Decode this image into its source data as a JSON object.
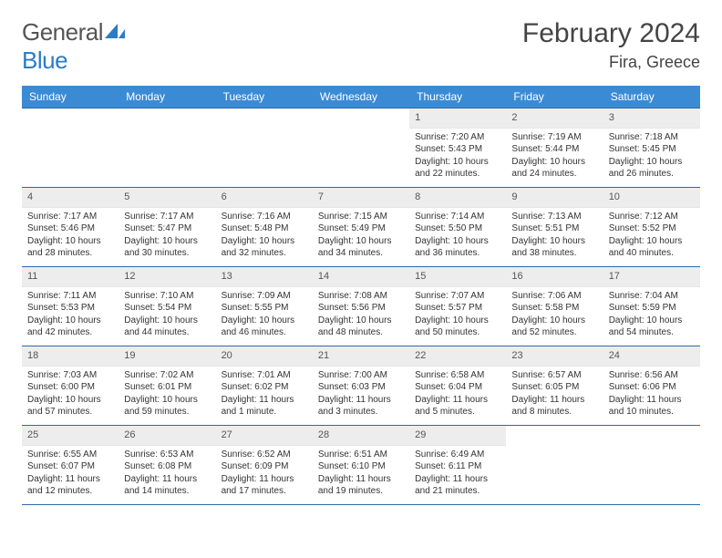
{
  "brand": {
    "part1": "General",
    "part2": "Blue"
  },
  "title": "February 2024",
  "location": "Fira, Greece",
  "colors": {
    "header_bg": "#3b8bd4",
    "header_text": "#ffffff",
    "rule": "#2a6aa8",
    "daynum_bg": "#ededed",
    "text": "#333333",
    "brand_gray": "#555555",
    "brand_blue": "#2a7cc7"
  },
  "weekdays": [
    "Sunday",
    "Monday",
    "Tuesday",
    "Wednesday",
    "Thursday",
    "Friday",
    "Saturday"
  ],
  "weeks": [
    [
      {
        "n": "",
        "empty": true
      },
      {
        "n": "",
        "empty": true
      },
      {
        "n": "",
        "empty": true
      },
      {
        "n": "",
        "empty": true
      },
      {
        "n": "1",
        "sunrise": "Sunrise: 7:20 AM",
        "sunset": "Sunset: 5:43 PM",
        "daylight": "Daylight: 10 hours and 22 minutes."
      },
      {
        "n": "2",
        "sunrise": "Sunrise: 7:19 AM",
        "sunset": "Sunset: 5:44 PM",
        "daylight": "Daylight: 10 hours and 24 minutes."
      },
      {
        "n": "3",
        "sunrise": "Sunrise: 7:18 AM",
        "sunset": "Sunset: 5:45 PM",
        "daylight": "Daylight: 10 hours and 26 minutes."
      }
    ],
    [
      {
        "n": "4",
        "sunrise": "Sunrise: 7:17 AM",
        "sunset": "Sunset: 5:46 PM",
        "daylight": "Daylight: 10 hours and 28 minutes."
      },
      {
        "n": "5",
        "sunrise": "Sunrise: 7:17 AM",
        "sunset": "Sunset: 5:47 PM",
        "daylight": "Daylight: 10 hours and 30 minutes."
      },
      {
        "n": "6",
        "sunrise": "Sunrise: 7:16 AM",
        "sunset": "Sunset: 5:48 PM",
        "daylight": "Daylight: 10 hours and 32 minutes."
      },
      {
        "n": "7",
        "sunrise": "Sunrise: 7:15 AM",
        "sunset": "Sunset: 5:49 PM",
        "daylight": "Daylight: 10 hours and 34 minutes."
      },
      {
        "n": "8",
        "sunrise": "Sunrise: 7:14 AM",
        "sunset": "Sunset: 5:50 PM",
        "daylight": "Daylight: 10 hours and 36 minutes."
      },
      {
        "n": "9",
        "sunrise": "Sunrise: 7:13 AM",
        "sunset": "Sunset: 5:51 PM",
        "daylight": "Daylight: 10 hours and 38 minutes."
      },
      {
        "n": "10",
        "sunrise": "Sunrise: 7:12 AM",
        "sunset": "Sunset: 5:52 PM",
        "daylight": "Daylight: 10 hours and 40 minutes."
      }
    ],
    [
      {
        "n": "11",
        "sunrise": "Sunrise: 7:11 AM",
        "sunset": "Sunset: 5:53 PM",
        "daylight": "Daylight: 10 hours and 42 minutes."
      },
      {
        "n": "12",
        "sunrise": "Sunrise: 7:10 AM",
        "sunset": "Sunset: 5:54 PM",
        "daylight": "Daylight: 10 hours and 44 minutes."
      },
      {
        "n": "13",
        "sunrise": "Sunrise: 7:09 AM",
        "sunset": "Sunset: 5:55 PM",
        "daylight": "Daylight: 10 hours and 46 minutes."
      },
      {
        "n": "14",
        "sunrise": "Sunrise: 7:08 AM",
        "sunset": "Sunset: 5:56 PM",
        "daylight": "Daylight: 10 hours and 48 minutes."
      },
      {
        "n": "15",
        "sunrise": "Sunrise: 7:07 AM",
        "sunset": "Sunset: 5:57 PM",
        "daylight": "Daylight: 10 hours and 50 minutes."
      },
      {
        "n": "16",
        "sunrise": "Sunrise: 7:06 AM",
        "sunset": "Sunset: 5:58 PM",
        "daylight": "Daylight: 10 hours and 52 minutes."
      },
      {
        "n": "17",
        "sunrise": "Sunrise: 7:04 AM",
        "sunset": "Sunset: 5:59 PM",
        "daylight": "Daylight: 10 hours and 54 minutes."
      }
    ],
    [
      {
        "n": "18",
        "sunrise": "Sunrise: 7:03 AM",
        "sunset": "Sunset: 6:00 PM",
        "daylight": "Daylight: 10 hours and 57 minutes."
      },
      {
        "n": "19",
        "sunrise": "Sunrise: 7:02 AM",
        "sunset": "Sunset: 6:01 PM",
        "daylight": "Daylight: 10 hours and 59 minutes."
      },
      {
        "n": "20",
        "sunrise": "Sunrise: 7:01 AM",
        "sunset": "Sunset: 6:02 PM",
        "daylight": "Daylight: 11 hours and 1 minute."
      },
      {
        "n": "21",
        "sunrise": "Sunrise: 7:00 AM",
        "sunset": "Sunset: 6:03 PM",
        "daylight": "Daylight: 11 hours and 3 minutes."
      },
      {
        "n": "22",
        "sunrise": "Sunrise: 6:58 AM",
        "sunset": "Sunset: 6:04 PM",
        "daylight": "Daylight: 11 hours and 5 minutes."
      },
      {
        "n": "23",
        "sunrise": "Sunrise: 6:57 AM",
        "sunset": "Sunset: 6:05 PM",
        "daylight": "Daylight: 11 hours and 8 minutes."
      },
      {
        "n": "24",
        "sunrise": "Sunrise: 6:56 AM",
        "sunset": "Sunset: 6:06 PM",
        "daylight": "Daylight: 11 hours and 10 minutes."
      }
    ],
    [
      {
        "n": "25",
        "sunrise": "Sunrise: 6:55 AM",
        "sunset": "Sunset: 6:07 PM",
        "daylight": "Daylight: 11 hours and 12 minutes."
      },
      {
        "n": "26",
        "sunrise": "Sunrise: 6:53 AM",
        "sunset": "Sunset: 6:08 PM",
        "daylight": "Daylight: 11 hours and 14 minutes."
      },
      {
        "n": "27",
        "sunrise": "Sunrise: 6:52 AM",
        "sunset": "Sunset: 6:09 PM",
        "daylight": "Daylight: 11 hours and 17 minutes."
      },
      {
        "n": "28",
        "sunrise": "Sunrise: 6:51 AM",
        "sunset": "Sunset: 6:10 PM",
        "daylight": "Daylight: 11 hours and 19 minutes."
      },
      {
        "n": "29",
        "sunrise": "Sunrise: 6:49 AM",
        "sunset": "Sunset: 6:11 PM",
        "daylight": "Daylight: 11 hours and 21 minutes."
      },
      {
        "n": "",
        "empty": true
      },
      {
        "n": "",
        "empty": true
      }
    ]
  ]
}
